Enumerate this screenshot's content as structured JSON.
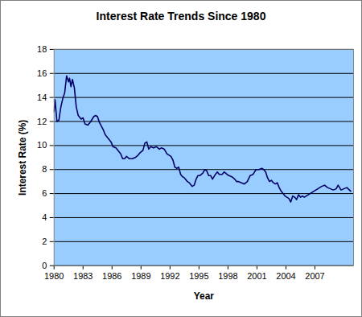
{
  "chart_data": {
    "type": "line",
    "title": "Interest Rate Trends Since 1980",
    "x_label": "Year",
    "y_label": "Interest Rate (%)",
    "x": [
      1980.0,
      1980.1,
      1980.3,
      1980.5,
      1980.7,
      1980.9,
      1981.1,
      1981.3,
      1981.5,
      1981.6,
      1981.75,
      1981.9,
      1982.1,
      1982.3,
      1982.5,
      1982.8,
      1983.0,
      1983.2,
      1983.5,
      1983.8,
      1984.1,
      1984.3,
      1984.5,
      1984.7,
      1984.9,
      1985.1,
      1985.3,
      1985.6,
      1985.9,
      1986.1,
      1986.4,
      1986.7,
      1986.9,
      1987.1,
      1987.3,
      1987.5,
      1987.8,
      1988.1,
      1988.4,
      1988.7,
      1988.9,
      1989.2,
      1989.4,
      1989.6,
      1989.8,
      1990.0,
      1990.3,
      1990.6,
      1990.9,
      1991.1,
      1991.4,
      1991.7,
      1991.9,
      1992.1,
      1992.3,
      1992.5,
      1992.7,
      1992.9,
      1993.1,
      1993.3,
      1993.5,
      1993.8,
      1994.0,
      1994.3,
      1994.5,
      1994.7,
      1994.9,
      1995.1,
      1995.4,
      1995.6,
      1995.8,
      1996.0,
      1996.2,
      1996.4,
      1996.7,
      1996.9,
      1997.1,
      1997.4,
      1997.6,
      1997.9,
      1998.1,
      1998.4,
      1998.7,
      1998.9,
      1999.1,
      1999.4,
      1999.7,
      2000.0,
      2000.3,
      2000.6,
      2000.9,
      2001.2,
      2001.5,
      2001.7,
      2001.9,
      2002.1,
      2002.3,
      2002.5,
      2002.7,
      2002.9,
      2003.1,
      2003.3,
      2003.5,
      2003.7,
      2003.9,
      2004.1,
      2004.3,
      2004.5,
      2004.7,
      2004.9,
      2005.1,
      2005.3,
      2005.5,
      2005.7,
      2005.9,
      2006.1,
      2006.5,
      2006.9,
      2007.3,
      2007.7,
      2008.0,
      2008.3,
      2008.6,
      2008.9,
      2009.2,
      2009.4,
      2009.7,
      2010.0,
      2010.3,
      2010.7
    ],
    "series": [
      {
        "color": "#000066",
        "values": [
          12.8,
          13.8,
          12.0,
          12.1,
          13.2,
          13.9,
          14.4,
          15.8,
          15.3,
          15.6,
          14.9,
          15.5,
          14.8,
          13.2,
          12.5,
          12.2,
          12.3,
          11.8,
          11.7,
          12.0,
          12.4,
          12.5,
          12.4,
          11.9,
          11.6,
          11.3,
          10.9,
          10.6,
          10.3,
          9.9,
          9.8,
          9.5,
          9.3,
          8.9,
          8.9,
          9.1,
          8.9,
          8.9,
          9.0,
          9.2,
          9.4,
          9.6,
          10.2,
          10.3,
          9.7,
          9.9,
          9.8,
          9.9,
          9.7,
          9.8,
          9.7,
          9.3,
          9.2,
          9.1,
          8.8,
          8.2,
          8.1,
          8.2,
          7.6,
          7.4,
          7.3,
          7.0,
          6.9,
          6.6,
          6.7,
          7.2,
          7.5,
          7.5,
          7.7,
          8.0,
          7.9,
          7.5,
          7.5,
          7.2,
          7.6,
          7.8,
          7.6,
          7.6,
          7.8,
          7.6,
          7.5,
          7.4,
          7.2,
          7.0,
          7.0,
          6.9,
          6.8,
          7.0,
          7.5,
          7.6,
          8.0,
          8.0,
          8.1,
          8.0,
          7.8,
          7.3,
          7.0,
          7.1,
          6.9,
          6.8,
          6.9,
          6.5,
          6.2,
          6.0,
          5.8,
          5.7,
          5.6,
          5.3,
          5.8,
          5.7,
          5.5,
          5.9,
          5.7,
          5.8,
          5.7,
          5.8,
          6.0,
          6.2,
          6.4,
          6.6,
          6.7,
          6.5,
          6.4,
          6.3,
          6.4,
          6.7,
          6.3,
          6.4,
          6.5,
          6.2
        ]
      }
    ],
    "xlim": [
      1980,
      2011
    ],
    "xticks": [
      1980,
      1983,
      1986,
      1989,
      1992,
      1995,
      1998,
      2001,
      2004,
      2007
    ],
    "ylim": [
      0,
      18
    ],
    "yticks": [
      0,
      2,
      4,
      6,
      8,
      10,
      12,
      14,
      16,
      18
    ],
    "grid": true
  }
}
